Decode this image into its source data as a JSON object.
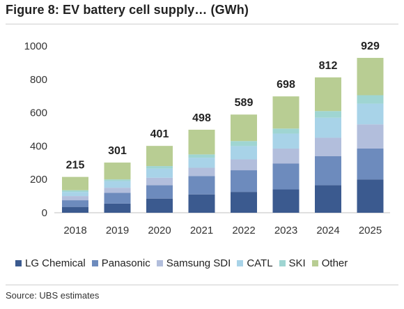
{
  "title": "Figure 8: EV battery cell supply… (GWh)",
  "source": "Source:  UBS estimates",
  "chart_data": {
    "type": "bar",
    "stacked": true,
    "categories": [
      "2018",
      "2019",
      "2020",
      "2021",
      "2022",
      "2023",
      "2024",
      "2025"
    ],
    "totals": [
      215,
      301,
      401,
      498,
      589,
      698,
      812,
      929
    ],
    "series": [
      {
        "name": "LG Chemical",
        "color": "#3b5a8f",
        "values": [
          35,
          55,
          85,
          110,
          125,
          140,
          165,
          200
        ]
      },
      {
        "name": "Panasonic",
        "color": "#6d8bbd",
        "values": [
          40,
          65,
          80,
          110,
          130,
          155,
          175,
          185
        ]
      },
      {
        "name": "Samsung SDI",
        "color": "#b2bedc",
        "values": [
          25,
          30,
          45,
          50,
          65,
          90,
          110,
          145
        ]
      },
      {
        "name": "CATL",
        "color": "#a8d3e8",
        "values": [
          25,
          40,
          55,
          60,
          80,
          90,
          120,
          125
        ]
      },
      {
        "name": "SKI",
        "color": "#9fd5d2",
        "values": [
          10,
          10,
          15,
          20,
          30,
          30,
          40,
          50
        ]
      },
      {
        "name": "Other",
        "color": "#b8cd93",
        "values": [
          80,
          101,
          121,
          148,
          159,
          193,
          202,
          224
        ]
      }
    ],
    "ylim": [
      0,
      1000
    ],
    "yticks": [
      0,
      200,
      400,
      600,
      800,
      1000
    ],
    "xlabel": "",
    "ylabel": "",
    "grid": false,
    "legend_position": "bottom"
  }
}
